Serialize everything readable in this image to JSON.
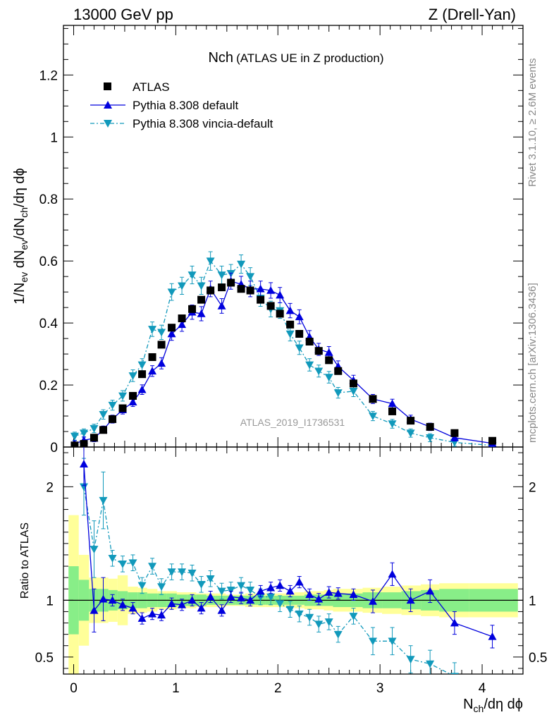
{
  "header": {
    "left": "13000 GeV pp",
    "right": "Z (Drell-Yan)"
  },
  "plot_title": {
    "main": "Nch",
    "sub": "(ATLAS UE in Z production)"
  },
  "side_labels": {
    "rivet": "Rivet 3.1.10, ≥ 2.6M events",
    "mcplots": "mcplots.cern.ch [arXiv:1306.3436]"
  },
  "watermark": "ATLAS_2019_I1736531",
  "axis_labels": {
    "x": "N_ch/dη dϕ",
    "y_main": "1/N_ev dN_ev/dN_ch/dη dϕ",
    "y_ratio": "Ratio to ATLAS"
  },
  "colors": {
    "data": "#000000",
    "default": "#0000dd",
    "vincia": "#1199bb",
    "band_inner": "#88ee88",
    "band_outer": "#ffff99"
  },
  "chart_data": {
    "type": "scatter",
    "x_range": [
      -0.1,
      4.4
    ],
    "main": {
      "y_range": [
        0,
        1.36
      ],
      "x_ticks": [
        0,
        1,
        2,
        3,
        4
      ],
      "y_ticks": [
        0,
        0.2,
        0.4,
        0.6,
        0.8,
        1,
        1.2
      ],
      "y_tick_labels": [
        "0",
        "0.2",
        "0.4",
        "0.6",
        "0.8",
        "1",
        "1.2"
      ],
      "legend_position": "top-left",
      "series": [
        {
          "name": "ATLAS",
          "style": "square",
          "x": [
            0.01,
            0.1,
            0.2,
            0.29,
            0.38,
            0.48,
            0.58,
            0.67,
            0.77,
            0.86,
            0.96,
            1.06,
            1.16,
            1.25,
            1.34,
            1.45,
            1.54,
            1.64,
            1.73,
            1.83,
            1.93,
            2.02,
            2.12,
            2.21,
            2.31,
            2.4,
            2.5,
            2.59,
            2.74,
            2.93,
            3.12,
            3.3,
            3.49,
            3.73,
            4.1
          ],
          "y": [
            0.005,
            0.01,
            0.03,
            0.055,
            0.09,
            0.125,
            0.165,
            0.235,
            0.29,
            0.33,
            0.385,
            0.415,
            0.445,
            0.475,
            0.505,
            0.515,
            0.53,
            0.51,
            0.505,
            0.475,
            0.455,
            0.43,
            0.395,
            0.365,
            0.34,
            0.31,
            0.28,
            0.245,
            0.205,
            0.155,
            0.115,
            0.085,
            0.065,
            0.045,
            0.02
          ]
        },
        {
          "name": "Pythia 8.308 default",
          "style": "triangle-up",
          "x": [
            0.01,
            0.1,
            0.2,
            0.29,
            0.38,
            0.48,
            0.58,
            0.67,
            0.77,
            0.86,
            0.96,
            1.06,
            1.16,
            1.25,
            1.34,
            1.45,
            1.54,
            1.64,
            1.73,
            1.83,
            1.93,
            2.02,
            2.12,
            2.21,
            2.31,
            2.4,
            2.5,
            2.59,
            2.74,
            2.93,
            3.12,
            3.3,
            3.49,
            3.73,
            4.1
          ],
          "y": [
            0.01,
            0.022,
            0.028,
            0.056,
            0.09,
            0.12,
            0.145,
            0.185,
            0.245,
            0.27,
            0.365,
            0.395,
            0.435,
            0.43,
            0.51,
            0.455,
            0.535,
            0.525,
            0.51,
            0.51,
            0.505,
            0.49,
            0.44,
            0.42,
            0.355,
            0.315,
            0.305,
            0.26,
            0.215,
            0.155,
            0.14,
            0.09,
            0.065,
            0.03,
            0.012
          ]
        },
        {
          "name": "Pythia 8.308 vincia-default",
          "style": "triangle-down",
          "x": [
            0.01,
            0.1,
            0.2,
            0.29,
            0.38,
            0.48,
            0.58,
            0.67,
            0.77,
            0.86,
            0.96,
            1.06,
            1.16,
            1.25,
            1.34,
            1.45,
            1.54,
            1.64,
            1.73,
            1.83,
            1.93,
            2.02,
            2.12,
            2.21,
            2.31,
            2.4,
            2.5,
            2.59,
            2.74,
            2.93,
            3.12,
            3.3,
            3.49,
            3.73,
            4.1
          ],
          "y": [
            0.035,
            0.045,
            0.06,
            0.105,
            0.135,
            0.165,
            0.23,
            0.265,
            0.38,
            0.37,
            0.5,
            0.52,
            0.555,
            0.52,
            0.6,
            0.555,
            0.56,
            0.59,
            0.55,
            0.48,
            0.445,
            0.44,
            0.365,
            0.32,
            0.265,
            0.245,
            0.225,
            0.175,
            0.18,
            0.1,
            0.075,
            0.045,
            0.03,
            0.015,
            0.005
          ]
        }
      ]
    },
    "ratio": {
      "y_range": [
        0.35,
        2.35
      ],
      "y_ticks": [
        0.5,
        1,
        2
      ],
      "y_tick_labels": [
        "0.5",
        "1",
        "2"
      ],
      "series": [
        {
          "name": "Pythia 8.308 default",
          "x": [
            0.1,
            0.2,
            0.29,
            0.38,
            0.48,
            0.58,
            0.67,
            0.77,
            0.86,
            0.96,
            1.06,
            1.16,
            1.25,
            1.34,
            1.45,
            1.54,
            1.64,
            1.73,
            1.83,
            1.93,
            2.02,
            2.12,
            2.21,
            2.31,
            2.4,
            2.5,
            2.59,
            2.74,
            2.93,
            3.12,
            3.3,
            3.49,
            3.73,
            4.1
          ],
          "y": [
            2.2,
            0.91,
            1.01,
            1.0,
            0.96,
            0.93,
            0.84,
            0.88,
            0.87,
            0.97,
            0.96,
            1.0,
            0.93,
            1.03,
            0.91,
            1.03,
            1.02,
            1.0,
            1.08,
            1.11,
            1.13,
            1.08,
            1.16,
            1.05,
            1.01,
            1.07,
            1.06,
            1.05,
            0.99,
            1.23,
            1.0,
            1.08,
            0.8,
            0.68
          ]
        },
        {
          "name": "Pythia 8.308 vincia-default",
          "x": [
            0.1,
            0.2,
            0.29,
            0.38,
            0.48,
            0.58,
            0.67,
            0.77,
            0.86,
            0.96,
            1.06,
            1.16,
            1.25,
            1.34,
            1.45,
            1.54,
            1.64,
            1.73,
            1.83,
            1.93,
            2.02,
            2.12,
            2.21,
            2.31,
            2.4,
            2.5,
            2.59,
            2.74,
            2.93,
            3.12,
            3.3,
            3.49,
            3.73
          ],
          "y": [
            2.0,
            1.45,
            1.88,
            1.37,
            1.32,
            1.33,
            1.13,
            1.3,
            1.12,
            1.25,
            1.25,
            1.24,
            1.14,
            1.19,
            1.08,
            1.09,
            1.13,
            1.09,
            1.03,
            1.03,
            0.97,
            0.92,
            0.88,
            0.85,
            0.79,
            0.81,
            0.7,
            0.86,
            0.64,
            0.64,
            0.48,
            0.44,
            0.33
          ]
        }
      ],
      "band_inner": {
        "x_edges": [
          -0.05,
          0.05,
          0.15,
          0.25,
          0.34,
          0.43,
          0.53,
          0.63,
          0.72,
          0.82,
          0.91,
          1.01,
          1.11,
          1.2,
          1.3,
          1.39,
          1.49,
          1.59,
          1.68,
          1.78,
          1.88,
          1.97,
          2.07,
          2.16,
          2.26,
          2.35,
          2.45,
          2.54,
          2.64,
          2.83,
          3.02,
          3.21,
          3.4,
          3.58,
          3.87,
          4.35
        ],
        "half_width": [
          0.3,
          0.18,
          0.1,
          0.1,
          0.09,
          0.08,
          0.07,
          0.07,
          0.06,
          0.06,
          0.06,
          0.05,
          0.05,
          0.05,
          0.04,
          0.04,
          0.04,
          0.04,
          0.04,
          0.04,
          0.04,
          0.04,
          0.04,
          0.04,
          0.05,
          0.05,
          0.05,
          0.06,
          0.06,
          0.07,
          0.07,
          0.08,
          0.09,
          0.1,
          0.1
        ]
      },
      "band_outer": {
        "x_edges": [
          -0.05,
          0.05,
          0.15,
          0.25,
          0.34,
          0.43,
          0.53,
          0.63,
          0.72,
          0.82,
          0.91,
          1.01,
          1.11,
          1.2,
          1.3,
          1.39,
          1.49,
          1.59,
          1.68,
          1.78,
          1.88,
          1.97,
          2.07,
          2.16,
          2.26,
          2.35,
          2.45,
          2.54,
          2.64,
          2.83,
          3.02,
          3.21,
          3.4,
          3.58,
          3.87,
          4.35
        ],
        "half_width": [
          0.75,
          0.4,
          0.2,
          0.2,
          0.19,
          0.22,
          0.12,
          0.11,
          0.1,
          0.08,
          0.08,
          0.07,
          0.07,
          0.06,
          0.06,
          0.06,
          0.05,
          0.05,
          0.06,
          0.06,
          0.06,
          0.06,
          0.06,
          0.07,
          0.08,
          0.08,
          0.09,
          0.1,
          0.1,
          0.11,
          0.12,
          0.13,
          0.14,
          0.15,
          0.15
        ]
      }
    }
  }
}
